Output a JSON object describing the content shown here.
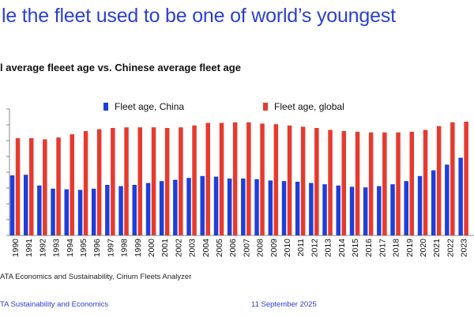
{
  "header": {
    "title": "le the fleet used to be one of world’s youngest",
    "subtitle": "l average fleeet age vs. Chinese average fleet age"
  },
  "chart_data": {
    "type": "bar",
    "categories": [
      "1990",
      "1991",
      "1992",
      "1993",
      "1994",
      "1995",
      "1996",
      "1997",
      "1998",
      "1999",
      "2000",
      "2001",
      "2002",
      "2003",
      "2004",
      "2005",
      "2006",
      "2007",
      "2008",
      "2009",
      "2010",
      "2011",
      "2012",
      "2013",
      "2014",
      "2015",
      "2016",
      "2017",
      "2018",
      "2019",
      "2020",
      "2021",
      "2022",
      "2023"
    ],
    "series": [
      {
        "name": "Fleet age, China",
        "color": "#1f3fd8",
        "values": [
          9.5,
          9.6,
          7.9,
          7.4,
          7.3,
          7.2,
          7.4,
          8.0,
          7.8,
          8.0,
          8.3,
          8.6,
          8.8,
          9.1,
          9.4,
          9.3,
          9.0,
          9.0,
          8.9,
          8.7,
          8.6,
          8.5,
          8.3,
          8.1,
          7.9,
          7.7,
          7.6,
          7.8,
          8.1,
          8.6,
          9.4,
          10.3,
          11.2,
          12.3
        ]
      },
      {
        "name": "Fleet age, global",
        "color": "#e63a2e",
        "values": [
          15.4,
          15.4,
          15.2,
          15.5,
          16.0,
          16.5,
          16.8,
          17.0,
          17.1,
          17.1,
          17.1,
          17.0,
          17.1,
          17.4,
          17.8,
          17.8,
          17.9,
          17.9,
          17.7,
          17.6,
          17.4,
          17.2,
          17.0,
          16.7,
          16.5,
          16.4,
          16.3,
          16.3,
          16.3,
          16.4,
          16.7,
          17.3,
          17.9,
          18.0
        ]
      }
    ],
    "ylim": [
      0,
      20
    ],
    "legend": "top",
    "grid": false
  },
  "footer": {
    "source": "ATA Economics and Sustainability, Cirium Fleets Analyzer",
    "org": "TA Sustainability and Economics",
    "date": "11 September 2025"
  }
}
